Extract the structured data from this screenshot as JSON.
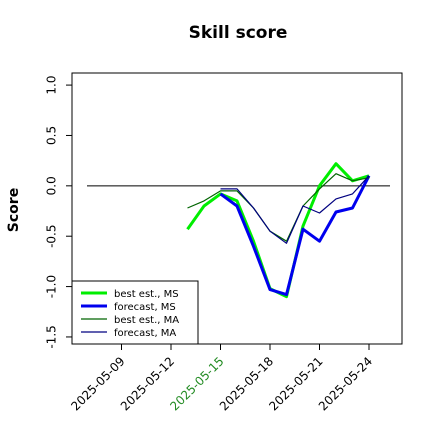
{
  "chart_data": {
    "type": "line",
    "title": "Skill score",
    "y_label": "Score",
    "x": [
      "2025-05-13",
      "2025-05-14",
      "2025-05-15",
      "2025-05-16",
      "2025-05-17",
      "2025-05-18",
      "2025-05-19",
      "2025-05-20",
      "2025-05-21",
      "2025-05-22",
      "2025-05-23",
      "2025-05-24"
    ],
    "xlim": [
      "2025-05-06",
      "2025-05-26"
    ],
    "xticks": [
      "2025-05-09",
      "2025-05-12",
      "2025-05-15",
      "2025-05-18",
      "2025-05-21",
      "2025-05-24"
    ],
    "ylim": [
      -1.57,
      1.12
    ],
    "yticks": [
      -1.5,
      {
        "value": -1.0,
        "label": "-1.0"
      },
      -0.5,
      {
        "value": 0.0,
        "label": "0.0"
      },
      0.5,
      {
        "value": 1.0,
        "label": "1.0"
      }
    ],
    "hline": 0,
    "legend": "bottom-left",
    "series": [
      {
        "name": "best est., MS",
        "color": "#00ee00",
        "width": 3,
        "values": [
          -0.43,
          -0.2,
          -0.08,
          -0.15,
          -0.55,
          -1.02,
          -1.1,
          -0.4,
          0.0,
          0.22,
          0.05,
          0.1
        ]
      },
      {
        "name": "forecast, MS",
        "color": "#0000ee",
        "width": 3,
        "values": [
          null,
          null,
          -0.08,
          -0.2,
          -0.6,
          -1.03,
          -1.08,
          -0.43,
          -0.55,
          -0.26,
          -0.22,
          0.1
        ]
      },
      {
        "name": "best est., MA",
        "color": "#006400",
        "width": 1.2,
        "values": [
          -0.22,
          -0.15,
          -0.05,
          -0.05,
          -0.22,
          -0.45,
          -0.55,
          -0.2,
          -0.03,
          0.12,
          0.05,
          0.08
        ]
      },
      {
        "name": "forecast, MA",
        "color": "#000080",
        "width": 1.2,
        "values": [
          null,
          null,
          -0.03,
          -0.03,
          -0.22,
          -0.45,
          -0.57,
          -0.2,
          -0.27,
          -0.13,
          -0.08,
          0.1
        ]
      }
    ]
  }
}
